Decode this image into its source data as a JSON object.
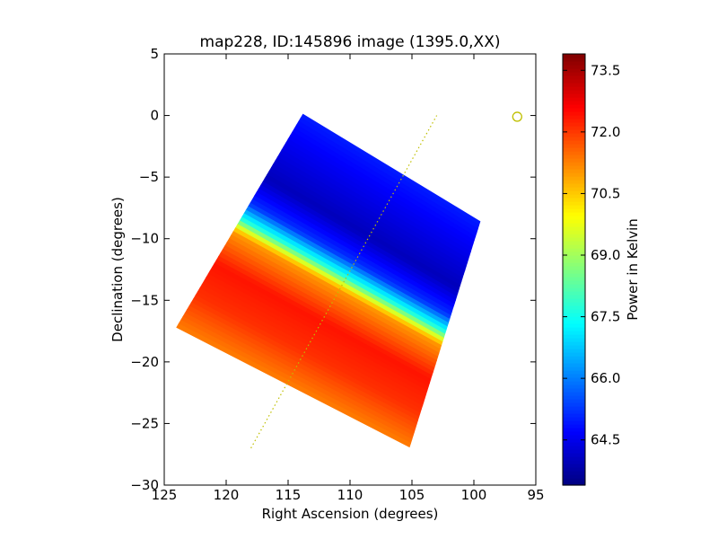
{
  "chart_data": {
    "type": "heatmap",
    "title": "map228, ID:145896 image (1395.0,XX)",
    "xlabel": "Right Ascension (degrees)",
    "ylabel": "Declination (degrees)",
    "xlim": [
      125,
      95
    ],
    "ylim": [
      -30,
      5
    ],
    "xticks": [
      125,
      120,
      115,
      110,
      105,
      100,
      95
    ],
    "yticks": [
      5,
      0,
      -5,
      -10,
      -15,
      -20,
      -25,
      -30
    ],
    "map_corners": [
      [
        113.8,
        0.1
      ],
      [
        99.5,
        -8.6
      ],
      [
        105.2,
        -26.9
      ],
      [
        124.0,
        -17.2
      ]
    ],
    "dotted_line": {
      "from": [
        118.0,
        -27.0
      ],
      "to": [
        103.0,
        0.0
      ],
      "color": "#bfbf00"
    },
    "circle_marker": {
      "x": 96.5,
      "y": -0.1,
      "color": "#bfbf00"
    },
    "colorbar": {
      "label": "Power in Kelvin",
      "range": [
        63.4,
        73.9
      ],
      "ticks": [
        "64.5",
        "66.0",
        "67.5",
        "69.0",
        "70.5",
        "72.0",
        "73.5"
      ],
      "tick_values": [
        64.5,
        66.0,
        67.5,
        69.0,
        70.5,
        72.0,
        73.5
      ],
      "colormap": "jet"
    },
    "field_samples": [
      {
        "u": 0.0,
        "value": 65.0
      },
      {
        "u": 0.3,
        "value": 64.0
      },
      {
        "u": 0.42,
        "value": 65.2
      },
      {
        "u": 0.49,
        "value": 67.6
      },
      {
        "u": 0.55,
        "value": 71.0
      },
      {
        "u": 0.7,
        "value": 72.4
      },
      {
        "u": 0.85,
        "value": 72.1
      },
      {
        "u": 1.0,
        "value": 71.3
      }
    ],
    "grid": false
  }
}
